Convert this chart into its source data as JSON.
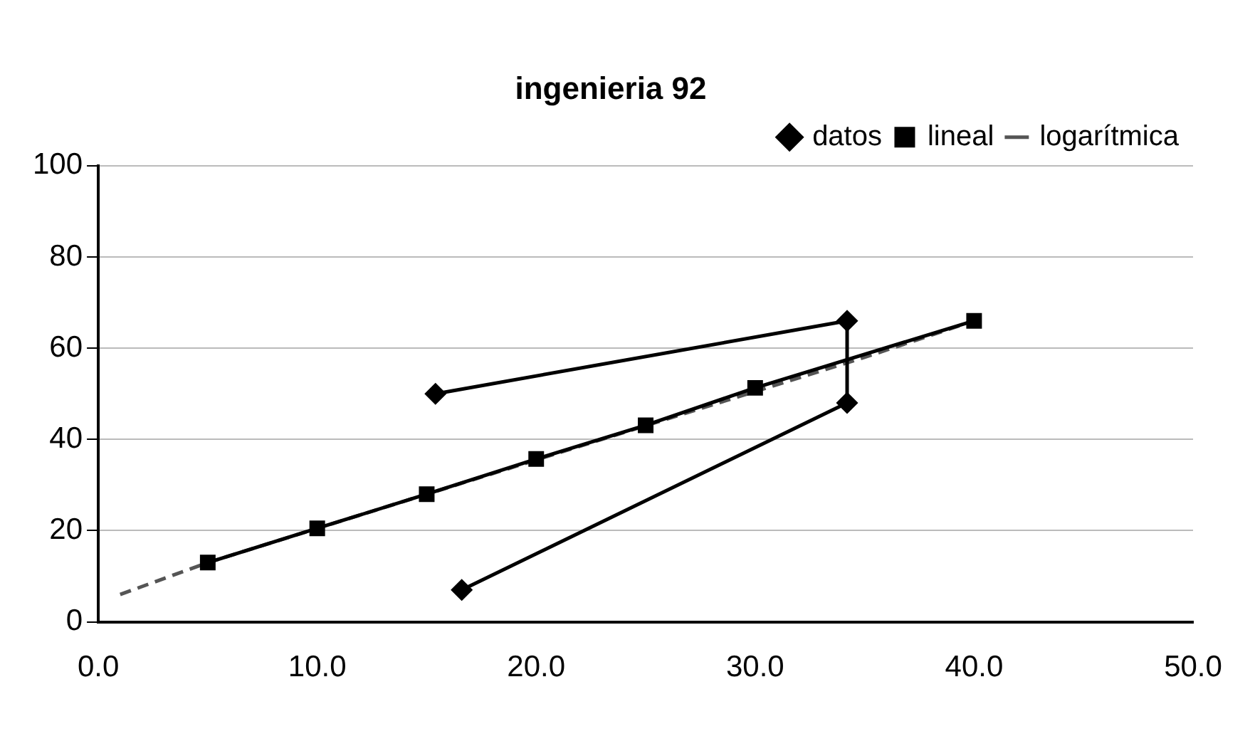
{
  "chart_data": {
    "type": "scatter",
    "title": "ingenieria 92",
    "xlim": [
      0,
      50
    ],
    "xticks": [
      {
        "value": 0,
        "label": "0.0"
      },
      {
        "value": 10,
        "label": "10.0"
      },
      {
        "value": 20,
        "label": "20.0"
      },
      {
        "value": 30,
        "label": "30.0"
      },
      {
        "value": 40,
        "label": "40.0"
      },
      {
        "value": 50,
        "label": "50.0"
      }
    ],
    "ylim": [
      0,
      100
    ],
    "yticks": [
      0,
      20,
      40,
      60,
      80,
      100
    ],
    "grid": "y",
    "legend": "top right",
    "series": [
      {
        "name": "datos",
        "type": "line",
        "color": "#000000",
        "marker": "diamond",
        "x": [
          15.4,
          34.2,
          34.2,
          16.6
        ],
        "values": [
          50,
          66,
          48,
          7
        ]
      },
      {
        "name": "lineal",
        "type": "line",
        "color": "#000000",
        "marker": "square",
        "x": [
          5,
          10,
          15,
          20,
          25,
          30,
          40
        ],
        "values": [
          13,
          20.5,
          28,
          35.7,
          43.1,
          51.3,
          66
        ]
      },
      {
        "name": "logarítmica",
        "type": "line",
        "color": "#555555",
        "marker": "none",
        "line_style": "dashed",
        "x": [
          1,
          5,
          35,
          40
        ],
        "values": [
          6,
          13,
          58,
          66
        ]
      }
    ]
  }
}
